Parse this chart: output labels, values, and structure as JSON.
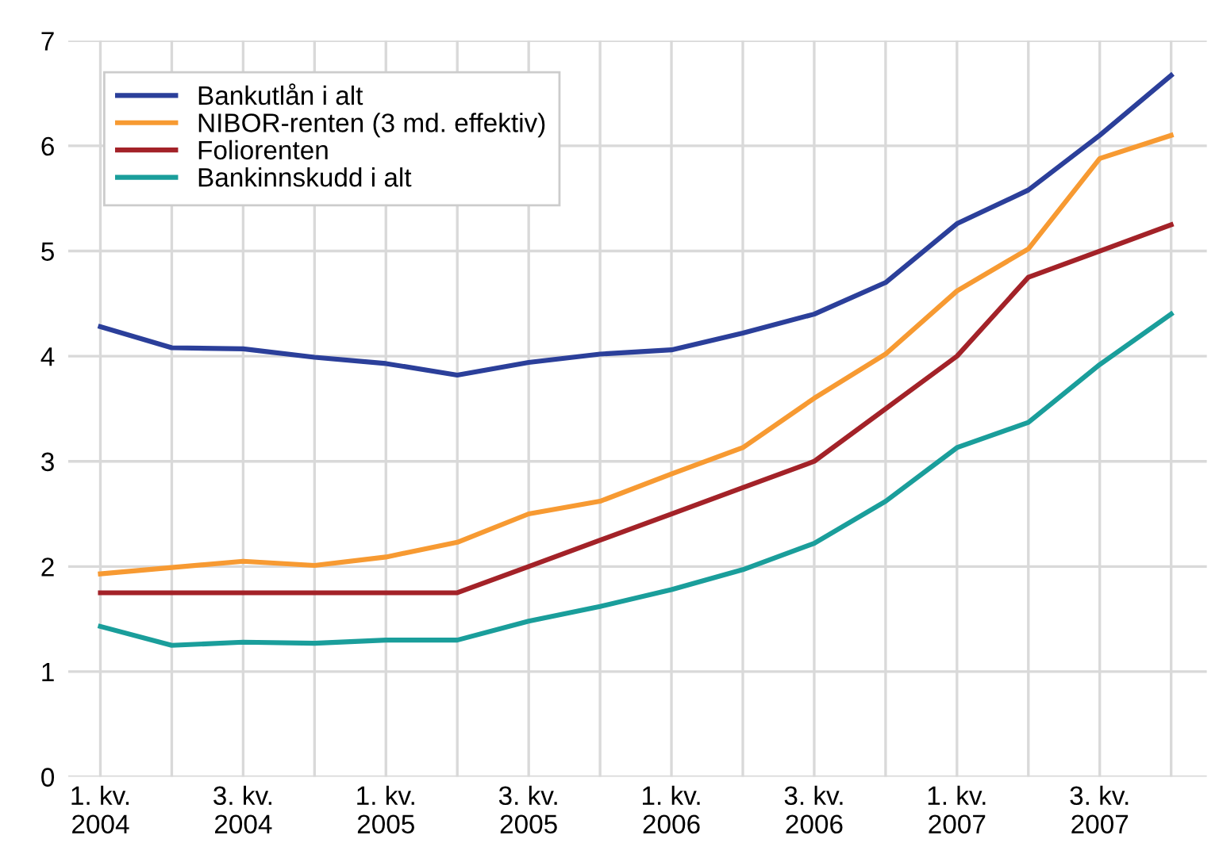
{
  "chart_data": {
    "type": "line",
    "categories": [
      "1. kv.\n2004",
      null,
      "3. kv.\n2004",
      null,
      "1. kv.\n2005",
      null,
      "3. kv.\n2005",
      null,
      "1. kv.\n2006",
      null,
      "3. kv.\n2006",
      null,
      "1. kv.\n2007",
      null,
      "3. kv.\n2007",
      null
    ],
    "series": [
      {
        "name": "Bankutlån i alt",
        "color": "#2b3f9a",
        "values": [
          4.28,
          4.08,
          4.07,
          3.99,
          3.93,
          3.82,
          3.94,
          4.02,
          4.06,
          4.22,
          4.4,
          4.7,
          5.26,
          5.58,
          6.1,
          6.67
        ]
      },
      {
        "name": "NIBOR-renten (3 md. effektiv)",
        "color": "#f79a32",
        "values": [
          1.93,
          1.99,
          2.05,
          2.01,
          2.09,
          2.23,
          2.5,
          2.62,
          2.88,
          3.13,
          3.6,
          4.02,
          4.62,
          5.02,
          5.88,
          6.1
        ]
      },
      {
        "name": "Foliorenten",
        "color": "#a32228",
        "values": [
          1.75,
          1.75,
          1.75,
          1.75,
          1.75,
          1.75,
          2.0,
          2.25,
          2.5,
          2.75,
          3.0,
          3.5,
          4.0,
          4.75,
          5.0,
          5.25
        ]
      },
      {
        "name": "Bankinnskudd i alt",
        "color": "#1a9e9b",
        "values": [
          1.43,
          1.25,
          1.28,
          1.27,
          1.3,
          1.3,
          1.48,
          1.62,
          1.78,
          1.97,
          2.22,
          2.62,
          3.13,
          3.37,
          3.92,
          4.4
        ]
      }
    ],
    "ylim": [
      0,
      7
    ],
    "yticks": [
      0,
      1,
      2,
      3,
      4,
      5,
      6,
      7
    ],
    "grid": true,
    "legend": "top left",
    "marker": "none",
    "line_style": "solid"
  }
}
